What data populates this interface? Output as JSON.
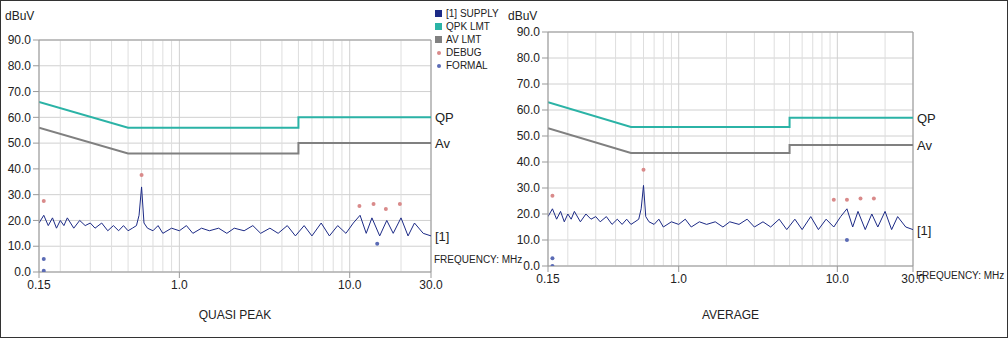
{
  "chart_data": [
    {
      "type": "line",
      "title": "QUASI PEAK",
      "y_label": "dBuV",
      "x_label": "FREQUENCY: MHz",
      "log": "x",
      "grid": true,
      "legend": "right",
      "xlim": [
        0.15,
        30
      ],
      "xticks": [
        {
          "value": 0.15,
          "label": "0.15"
        },
        {
          "value": 1,
          "label": "1.0"
        },
        {
          "value": 10,
          "label": "10.0"
        },
        {
          "value": 30,
          "label": "30.0"
        }
      ],
      "ylim": [
        0,
        90
      ],
      "yticks": [
        {
          "value": 0,
          "label": "0.0"
        },
        {
          "value": 10,
          "label": "10.0"
        },
        {
          "value": 20,
          "label": "20.0"
        },
        {
          "value": 30,
          "label": "30.0"
        },
        {
          "value": 40,
          "label": "40.0"
        },
        {
          "value": 50,
          "label": "50.0"
        },
        {
          "value": 60,
          "label": "60.0"
        },
        {
          "value": 70,
          "label": "70.0"
        },
        {
          "value": 80,
          "label": "80.0"
        },
        {
          "value": 90,
          "label": "90.0"
        }
      ],
      "series": [
        {
          "name": "[1] SUPPLY",
          "type": "line",
          "color": "#1c2a86",
          "marker": "none",
          "x": [
            0.15,
            0.16,
            0.17,
            0.18,
            0.19,
            0.2,
            0.21,
            0.22,
            0.24,
            0.26,
            0.28,
            0.3,
            0.32,
            0.35,
            0.38,
            0.41,
            0.44,
            0.47,
            0.5,
            0.53,
            0.56,
            0.58,
            0.6,
            0.62,
            0.65,
            0.7,
            0.75,
            0.8,
            0.9,
            1.0,
            1.1,
            1.2,
            1.35,
            1.5,
            1.7,
            1.9,
            2.1,
            2.4,
            2.7,
            3.0,
            3.4,
            3.8,
            4.3,
            4.8,
            5.4,
            6.0,
            6.8,
            7.6,
            8.5,
            9.5,
            10.5,
            11.5,
            12.5,
            13.5,
            15,
            16.5,
            18,
            20,
            22,
            24,
            27,
            30
          ],
          "values": [
            19,
            22,
            18,
            21,
            17,
            20,
            18,
            21,
            17,
            20,
            18,
            19,
            17,
            19,
            16,
            18,
            16,
            18,
            16,
            17,
            18,
            22,
            33,
            19,
            17,
            16,
            18,
            15,
            17,
            16,
            18,
            15,
            17,
            16,
            17,
            15,
            17,
            16,
            18,
            15,
            17,
            15,
            18,
            14,
            18,
            14,
            19,
            14,
            18,
            15,
            19,
            22,
            15,
            21,
            14,
            20,
            15,
            21,
            14,
            19,
            15,
            14
          ]
        },
        {
          "name": "QPK LMT",
          "type": "line",
          "color": "#2bb3a6",
          "marker": "none",
          "x": [
            0.15,
            0.5,
            5,
            5,
            30
          ],
          "values": [
            66,
            56,
            56,
            60,
            60
          ]
        },
        {
          "name": "AV LMT",
          "type": "line",
          "color": "#808080",
          "marker": "none",
          "x": [
            0.15,
            0.5,
            5,
            5,
            30
          ],
          "values": [
            56,
            46,
            46,
            50,
            50
          ]
        },
        {
          "name": "DEBUG",
          "type": "scatter",
          "color": "#d98a8a",
          "marker": "circle",
          "x": [
            0.16,
            0.6,
            11.4,
            13.8,
            16.3,
            19.7
          ],
          "values": [
            27.5,
            37.6,
            25.6,
            26.4,
            24.4,
            26.4
          ]
        },
        {
          "name": "FORMAL",
          "type": "scatter",
          "color": "#5b6bb5",
          "marker": "circle",
          "x": [
            0.16,
            0.16,
            14.5
          ],
          "values": [
            5,
            0.5,
            11
          ]
        }
      ],
      "annotations": [
        {
          "text": "QP",
          "series": "QPK LMT"
        },
        {
          "text": "Av",
          "series": "AV LMT"
        },
        {
          "text": "[1]",
          "series": "[1] SUPPLY"
        }
      ]
    },
    {
      "type": "line",
      "title": "AVERAGE",
      "y_label": "dBuV",
      "x_label": "FREQUENCY: MHz",
      "log": "x",
      "grid": true,
      "xlim": [
        0.15,
        30
      ],
      "xticks": [
        {
          "value": 0.15,
          "label": "0.15"
        },
        {
          "value": 1,
          "label": "1.0"
        },
        {
          "value": 10,
          "label": "10.0"
        },
        {
          "value": 30,
          "label": "30.0"
        }
      ],
      "ylim": [
        0,
        90
      ],
      "yticks": [
        {
          "value": 0,
          "label": "0.0"
        },
        {
          "value": 10,
          "label": "10.0"
        },
        {
          "value": 20,
          "label": "20.0"
        },
        {
          "value": 30,
          "label": "30.0"
        },
        {
          "value": 40,
          "label": "40.0"
        },
        {
          "value": 50,
          "label": "50.0"
        },
        {
          "value": 60,
          "label": "60.0"
        },
        {
          "value": 70,
          "label": "70.0"
        },
        {
          "value": 80,
          "label": "80.0"
        },
        {
          "value": 90,
          "label": "90.0"
        }
      ],
      "series": [
        {
          "name": "[1] SUPPLY",
          "type": "line",
          "color": "#1c2a86",
          "marker": "none",
          "x": [
            0.15,
            0.16,
            0.17,
            0.18,
            0.19,
            0.2,
            0.21,
            0.22,
            0.24,
            0.26,
            0.28,
            0.3,
            0.32,
            0.35,
            0.38,
            0.41,
            0.44,
            0.47,
            0.5,
            0.53,
            0.56,
            0.58,
            0.6,
            0.62,
            0.65,
            0.7,
            0.75,
            0.8,
            0.9,
            1.0,
            1.1,
            1.2,
            1.35,
            1.5,
            1.7,
            1.9,
            2.1,
            2.4,
            2.7,
            3.0,
            3.4,
            3.8,
            4.3,
            4.8,
            5.4,
            6.0,
            6.8,
            7.6,
            8.5,
            9.5,
            10.5,
            11.5,
            12.5,
            13.5,
            15,
            16.5,
            18,
            20,
            22,
            24,
            27,
            30
          ],
          "values": [
            19,
            22,
            18,
            21,
            17,
            20,
            18,
            21,
            17,
            20,
            18,
            19,
            17,
            19,
            16,
            18,
            16,
            18,
            16,
            17,
            18,
            22,
            31,
            19,
            17,
            16,
            18,
            15,
            17,
            16,
            18,
            15,
            17,
            16,
            17,
            15,
            17,
            16,
            18,
            15,
            17,
            15,
            18,
            14,
            18,
            14,
            19,
            14,
            18,
            15,
            19,
            22,
            15,
            21,
            14,
            20,
            15,
            21,
            14,
            19,
            15,
            14
          ]
        },
        {
          "name": "QPK LMT",
          "type": "line",
          "color": "#2bb3a6",
          "marker": "none",
          "x": [
            0.15,
            0.5,
            5,
            5,
            30
          ],
          "values": [
            63,
            53.5,
            53.5,
            57,
            57
          ]
        },
        {
          "name": "AV LMT",
          "type": "line",
          "color": "#808080",
          "marker": "none",
          "x": [
            0.15,
            0.5,
            5,
            5,
            30
          ],
          "values": [
            53,
            43.5,
            43.5,
            46.5,
            46.5
          ]
        },
        {
          "name": "DEBUG",
          "type": "scatter",
          "color": "#d98a8a",
          "marker": "circle",
          "x": [
            0.16,
            0.6,
            9.5,
            11.5,
            14,
            17
          ],
          "values": [
            27,
            37,
            25.5,
            25.5,
            26,
            26
          ]
        },
        {
          "name": "FORMAL",
          "type": "scatter",
          "color": "#5b6bb5",
          "marker": "circle",
          "x": [
            0.16,
            0.16,
            11.5
          ],
          "values": [
            3,
            0,
            10
          ]
        }
      ],
      "annotations": [
        {
          "text": "QP",
          "series": "QPK LMT"
        },
        {
          "text": "Av",
          "series": "AV LMT"
        },
        {
          "text": "[1]",
          "series": "[1] SUPPLY"
        }
      ]
    }
  ]
}
